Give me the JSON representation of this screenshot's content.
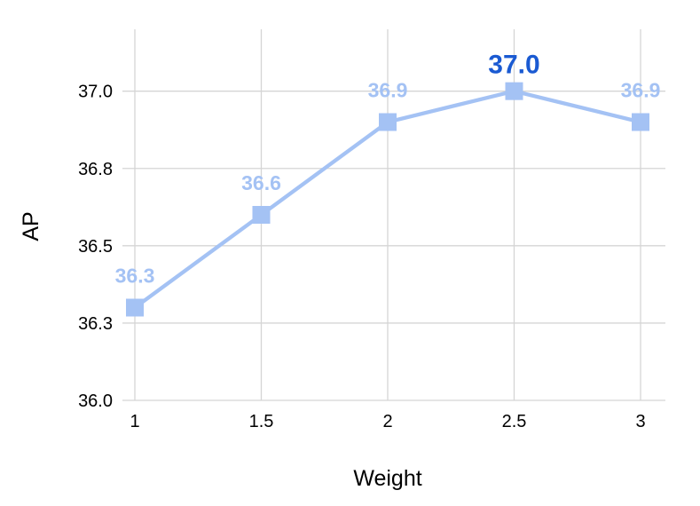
{
  "chart_data": {
    "type": "line",
    "title": "",
    "xlabel": "Weight",
    "ylabel": "AP",
    "x": [
      1,
      1.5,
      2,
      2.5,
      3
    ],
    "x_tick_labels": [
      "1",
      "1.5",
      "2",
      "2.5",
      "3"
    ],
    "y_ticks": [
      36.0,
      36.25,
      36.5,
      36.75,
      37.0
    ],
    "y_tick_labels": [
      "36.0",
      "36.3",
      "36.5",
      "36.8",
      "37.0"
    ],
    "ylim": [
      36.0,
      37.2
    ],
    "series": [
      {
        "name": "AP",
        "values": [
          36.3,
          36.6,
          36.9,
          37.0,
          36.9
        ]
      }
    ],
    "point_labels": [
      "36.3",
      "36.6",
      "36.9",
      "37.0",
      "36.9"
    ],
    "emphasized_point_index": 3,
    "marker": "square",
    "grid": true,
    "legend_position": "none",
    "colors": {
      "series": "#a4c2f4",
      "label": "#a4c2f4",
      "label_emphasis": "#1a5ad2",
      "grid": "#d5d5d5",
      "tick_text": "#000000",
      "axis_title_text": "#000000",
      "background": "#ffffff"
    }
  }
}
